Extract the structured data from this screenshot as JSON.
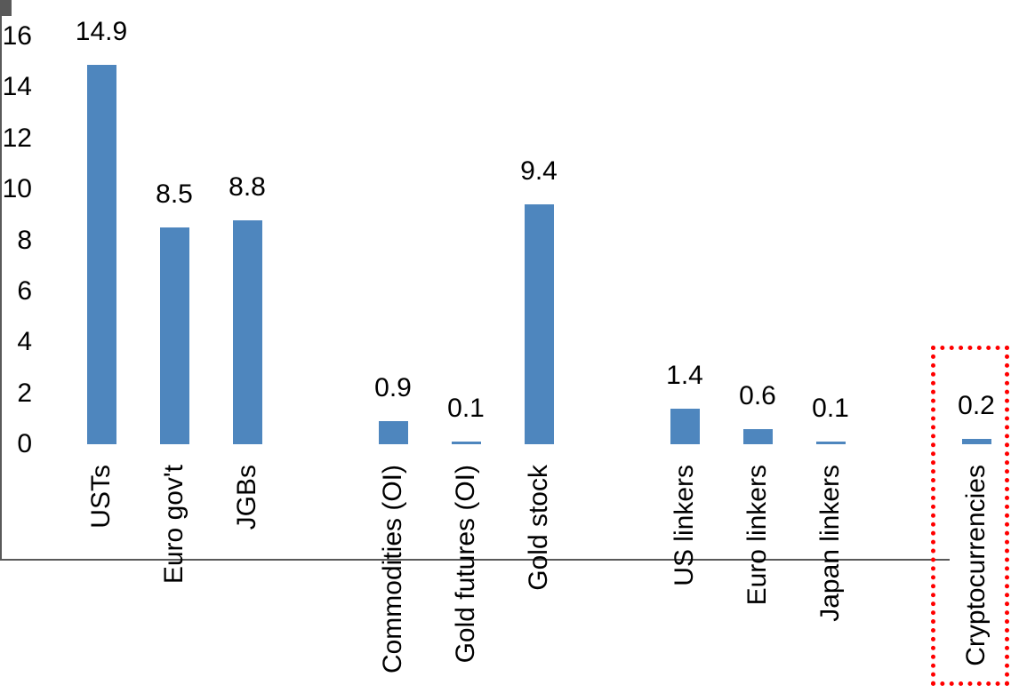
{
  "chart_data": {
    "type": "bar",
    "title": "",
    "xlabel": "",
    "ylabel": "",
    "grid": "off",
    "legend": "none",
    "categories": [
      "USTs",
      "Euro gov't",
      "JGBs",
      "Commodities (OI)",
      "Gold futures (OI)",
      "Gold stock",
      "US linkers",
      "Euro linkers",
      "Japan linkers",
      "Cryptocurrencies"
    ],
    "values": [
      14.9,
      8.5,
      8.8,
      0.9,
      0.1,
      9.4,
      1.4,
      0.6,
      0.1,
      0.2
    ],
    "value_labels": [
      "14.9",
      "8.5",
      "8.8",
      "0.9",
      "0.1",
      "9.4",
      "1.4",
      "0.6",
      "0.1",
      "0.2"
    ],
    "slots": [
      1,
      2,
      3,
      5,
      6,
      7,
      9,
      10,
      11,
      13
    ],
    "slot_count": 13,
    "y_ticks": [
      "16",
      "14",
      "12",
      "10",
      "8",
      "6",
      "4",
      "2",
      "0"
    ],
    "ylim": [
      0,
      16
    ],
    "x_label_rotation_deg": 90,
    "bar_color": "#4E86BE",
    "axis_color": "#595959",
    "text_color": "#000000",
    "highlight": {
      "category": "Cryptocurrencies",
      "style": "dotted-rectangle",
      "color": "#FF0000"
    }
  }
}
